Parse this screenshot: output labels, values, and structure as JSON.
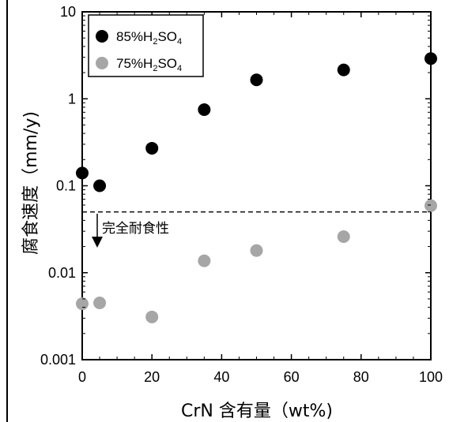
{
  "chart_data": {
    "type": "scatter",
    "xlabel": "CrN 含有量（wt%)",
    "ylabel": "腐食速度（mm/y)",
    "x_scale": "linear",
    "y_scale": "log",
    "xlim": [
      0,
      100
    ],
    "ylim": [
      0.001,
      10
    ],
    "x_ticks": [
      "0",
      "20",
      "40",
      "60",
      "80",
      "100"
    ],
    "y_ticks": [
      "0.001",
      "0.01",
      "0.1",
      "1",
      "10"
    ],
    "grid": false,
    "legend_position": "top-left",
    "series": [
      {
        "name_parts": [
          "85%H",
          "2",
          "SO",
          "4"
        ],
        "color": "#000000",
        "x": [
          0,
          5,
          20,
          35,
          50,
          75,
          100
        ],
        "y": [
          0.14,
          0.1,
          0.27,
          0.75,
          1.65,
          2.15,
          2.9
        ]
      },
      {
        "name_parts": [
          "75%H",
          "2",
          "SO",
          "4"
        ],
        "color": "#a6a6a6",
        "x": [
          0,
          5,
          20,
          35,
          50,
          75,
          100
        ],
        "y": [
          0.0044,
          0.0045,
          0.0031,
          0.0137,
          0.018,
          0.026,
          0.059
        ]
      }
    ],
    "reference_line": {
      "y": 0.05,
      "style": "dashed"
    },
    "annotation": {
      "text": "完全耐食性",
      "arrow": "down"
    }
  }
}
